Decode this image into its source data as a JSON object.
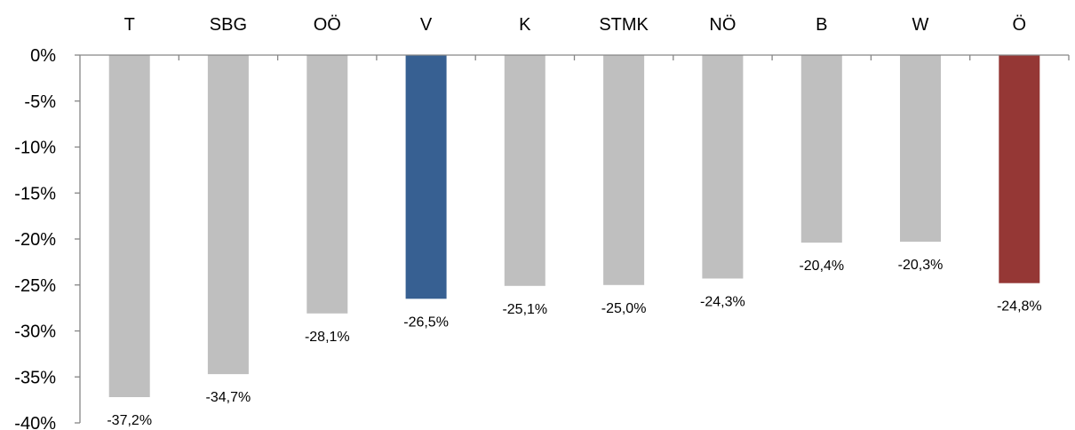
{
  "chart_data": {
    "type": "bar",
    "categories": [
      "T",
      "SBG",
      "OÖ",
      "V",
      "K",
      "STMK",
      "NÖ",
      "B",
      "W",
      "Ö"
    ],
    "values": [
      -37.2,
      -34.7,
      -28.1,
      -26.5,
      -25.1,
      -25.0,
      -24.3,
      -20.4,
      -20.3,
      -24.8
    ],
    "value_labels": [
      "-37,2%",
      "-34,7%",
      "-28,1%",
      "-26,5%",
      "-25,1%",
      "-25,0%",
      "-24,3%",
      "-20,4%",
      "-20,3%",
      "-24,8%"
    ],
    "bar_colors": [
      "#bfbfbf",
      "#bfbfbf",
      "#bfbfbf",
      "#376092",
      "#bfbfbf",
      "#bfbfbf",
      "#bfbfbf",
      "#bfbfbf",
      "#bfbfbf",
      "#953735"
    ],
    "ylim": [
      -40,
      0
    ],
    "yticks": [
      0,
      -5,
      -10,
      -15,
      -20,
      -25,
      -30,
      -35,
      -40
    ],
    "ytick_labels": [
      "0%",
      "-5%",
      "-10%",
      "-15%",
      "-20%",
      "-25%",
      "-30%",
      "-35%",
      "-40%"
    ],
    "category_axis_position": "top",
    "grid": false,
    "legend": "none",
    "title": "",
    "xlabel": "",
    "ylabel": ""
  }
}
